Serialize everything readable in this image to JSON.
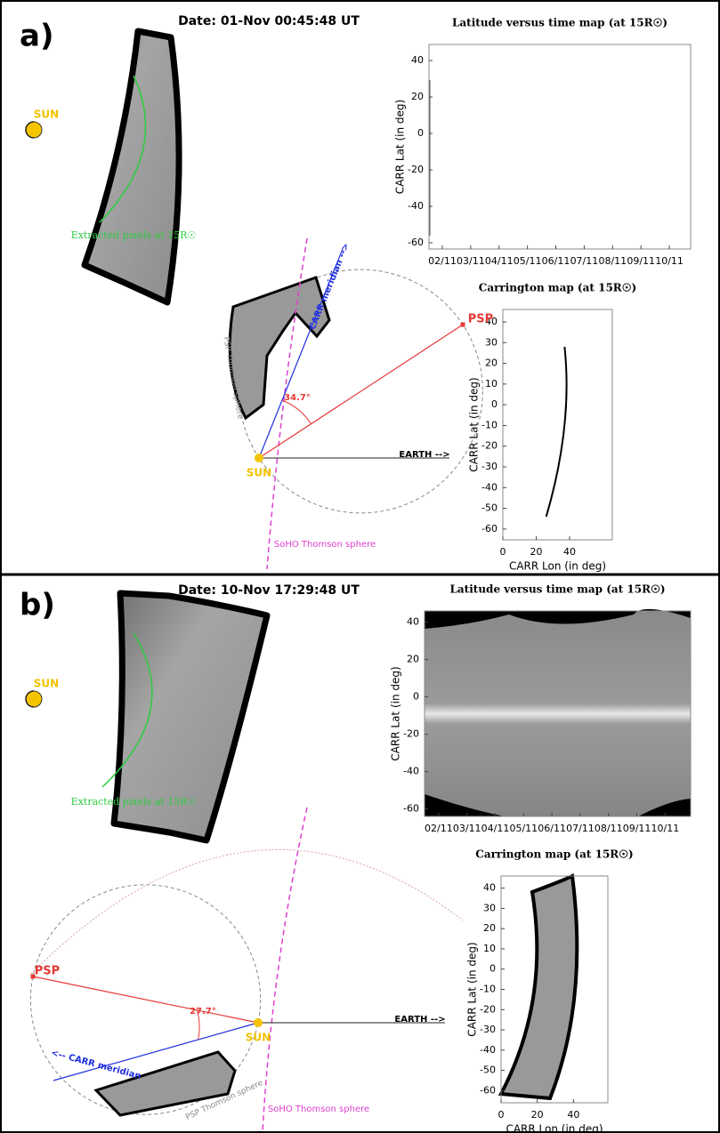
{
  "panels": [
    {
      "label": "a)",
      "date": "Date: 01-Nov 00:45:48 UT",
      "sun_label": "SUN",
      "extracted_label": "Extracted pixels at 15R☉",
      "lat_time_map": {
        "title": "Latitude versus time map (at 15R☉)",
        "y_label": "CARR Lat (in deg)",
        "ylim": [
          -63.4,
          48.8
        ],
        "yticks": [
          40,
          20,
          0,
          -20,
          -40,
          -60
        ],
        "xlim": [
          1.53,
          10.75
        ],
        "xticks": [
          {
            "value": 2,
            "label": "02/11"
          },
          {
            "value": 3,
            "label": "03/11"
          },
          {
            "value": 4,
            "label": "04/11"
          },
          {
            "value": 5,
            "label": "05/11"
          },
          {
            "value": 6,
            "label": "06/11"
          },
          {
            "value": 7,
            "label": "07/11"
          },
          {
            "value": 8,
            "label": "08/11"
          },
          {
            "value": 9,
            "label": "09/11"
          },
          {
            "value": 10,
            "label": "10/11"
          }
        ]
      },
      "carrington_map": {
        "title": "Carrington map (at 15R☉)",
        "x_label": "CARR Lon (in deg)",
        "y_label": "CARR Lat (in deg)",
        "xlim": [
          0,
          65.6
        ],
        "xticks": [
          0,
          20,
          40
        ],
        "ylim": [
          -65.2,
          46
        ],
        "yticks": [
          40,
          30,
          20,
          10,
          0,
          -10,
          -20,
          -30,
          -40,
          -50,
          -60
        ]
      },
      "diagram": {
        "sun": "SUN",
        "psp": "PSP",
        "earth": "EARTH -->",
        "carr_meridian": "CARR meridian -->",
        "angle": "34.7°",
        "psp_sphere": "PSP Thomson sphere",
        "soho_sphere": "SoHO Thomson sphere"
      }
    },
    {
      "label": "b)",
      "date": "Date: 10-Nov 17:29:48 UT",
      "sun_label": "SUN",
      "extracted_label": "Extracted pixels at 15R☉",
      "lat_time_map": {
        "title": "Latitude versus time map (at 15R☉)",
        "y_label": "CARR Lat (in deg)",
        "ylim": [
          -64,
          46
        ],
        "yticks": [
          40,
          20,
          0,
          -20,
          -40,
          -60
        ],
        "xlim": [
          1.5,
          10.9
        ],
        "xticks": [
          {
            "value": 2,
            "label": "02/11"
          },
          {
            "value": 3,
            "label": "03/11"
          },
          {
            "value": 4,
            "label": "04/11"
          },
          {
            "value": 5,
            "label": "05/11"
          },
          {
            "value": 6,
            "label": "06/11"
          },
          {
            "value": 7,
            "label": "07/11"
          },
          {
            "value": 8,
            "label": "08/11"
          },
          {
            "value": 9,
            "label": "09/11"
          },
          {
            "value": 10,
            "label": "10/11"
          }
        ]
      },
      "carrington_map": {
        "title": "Carrington map (at 15R☉)",
        "x_label": "CARR Lon (in deg)",
        "y_label": "CARR Lat (in deg)",
        "xlim": [
          0,
          59
        ],
        "xticks": [
          0,
          20,
          40
        ],
        "ylim": [
          -66,
          46
        ],
        "yticks": [
          40,
          30,
          20,
          10,
          0,
          -10,
          -20,
          -30,
          -40,
          -50,
          -60
        ]
      },
      "diagram": {
        "sun": "SUN",
        "psp": "PSP",
        "earth": "EARTH -->",
        "carr_meridian": "<-- CARR meridian",
        "angle": "27.7°",
        "psp_sphere": "PSP Thomson sphere",
        "soho_sphere": "SoHO Thomson sphere"
      }
    }
  ]
}
